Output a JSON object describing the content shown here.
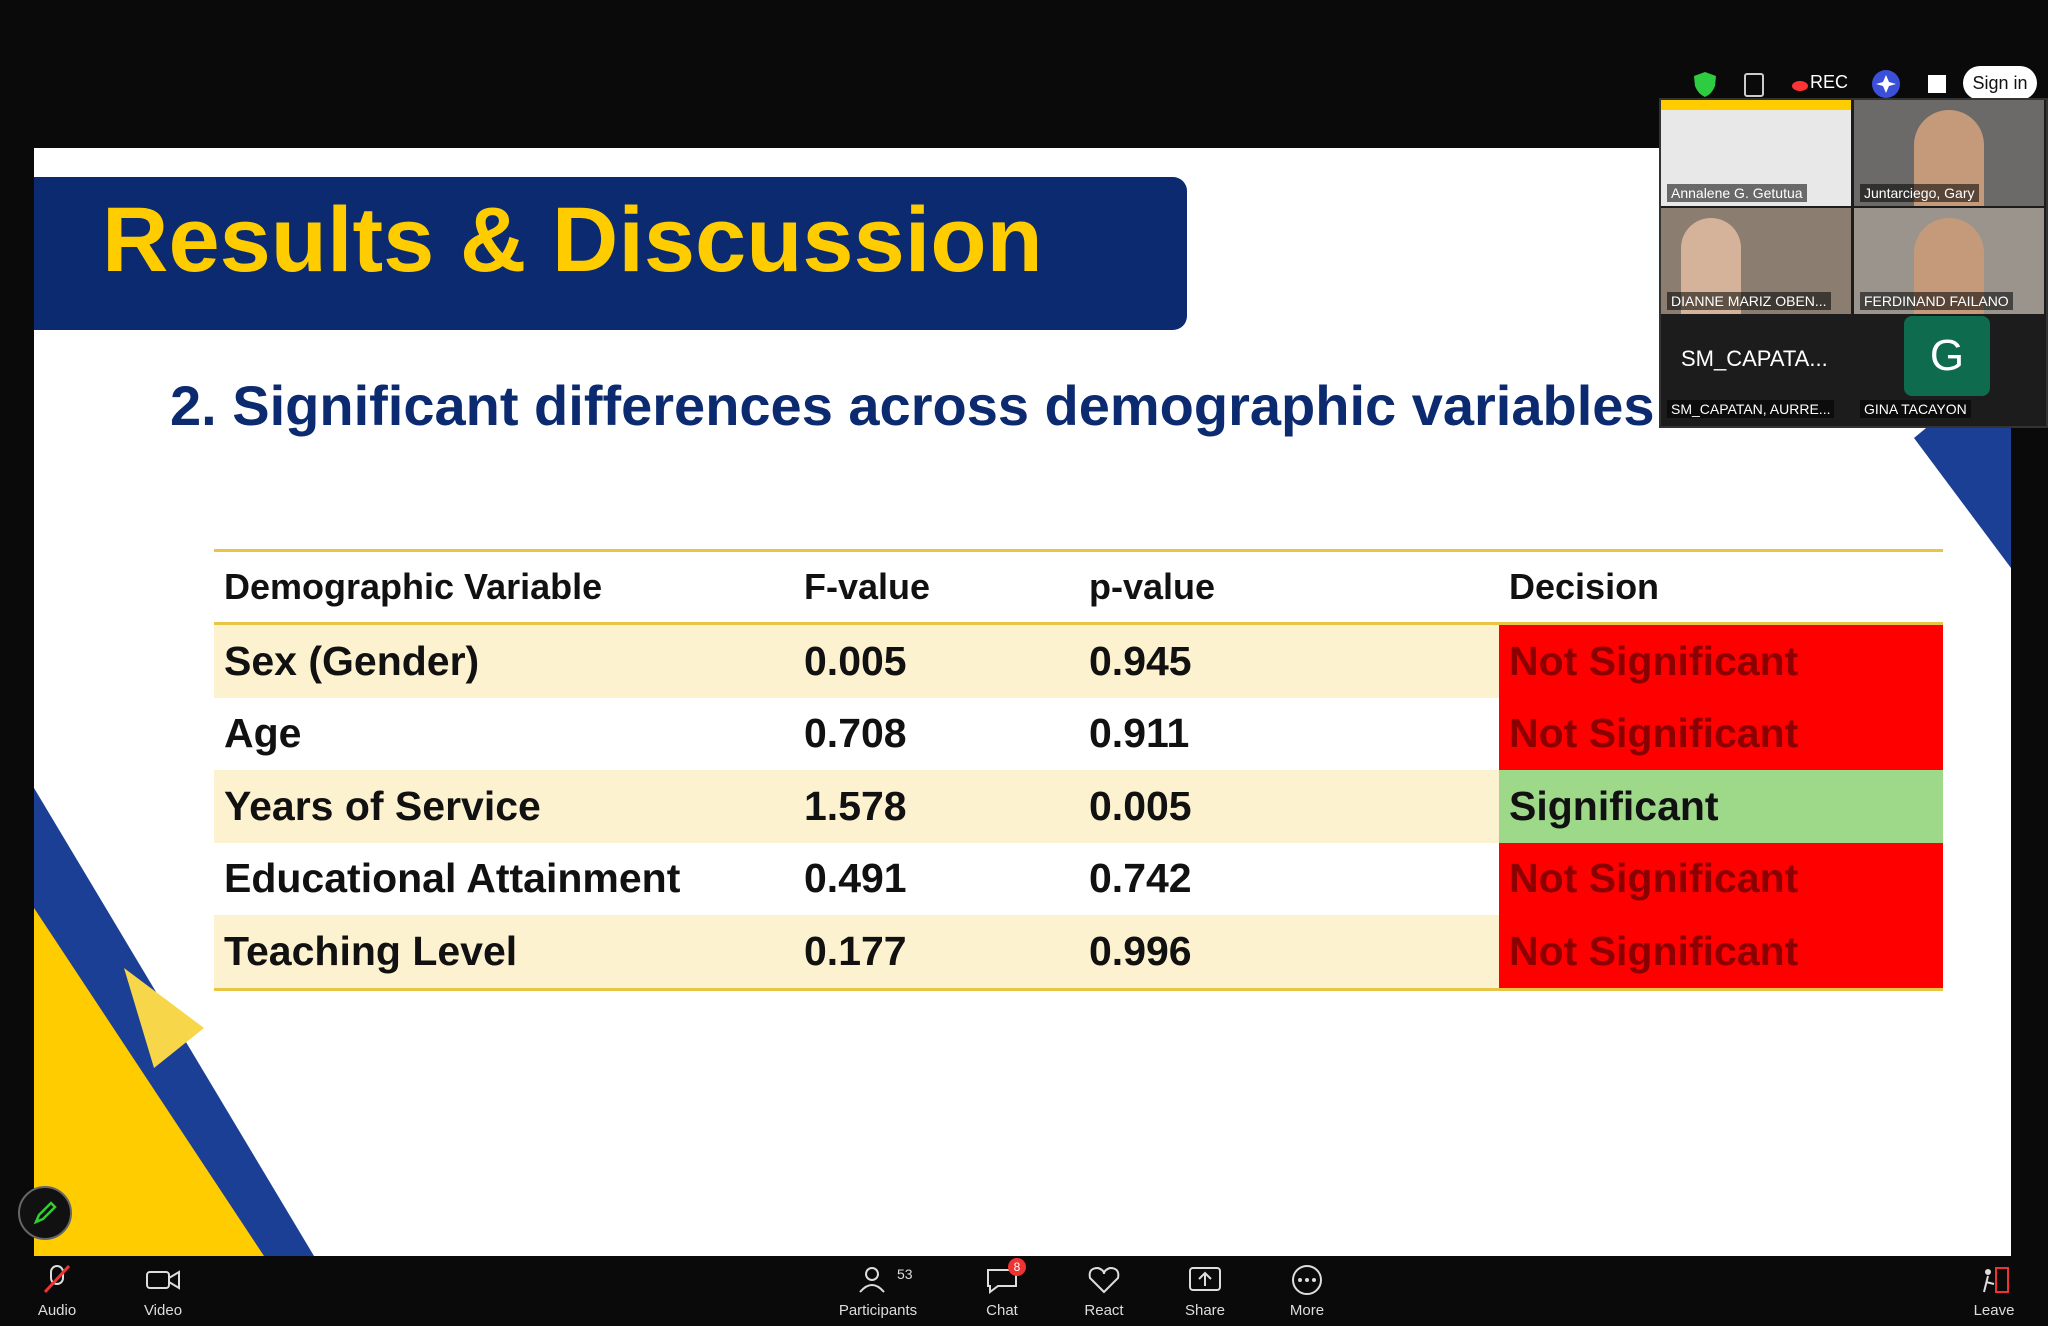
{
  "header": {
    "title": "Results & Discussion",
    "subtitle": "2. Significant differences across demographic variables"
  },
  "table": {
    "columns": [
      "Demographic Variable",
      "F-value",
      "p-value",
      "Decision"
    ],
    "rows": [
      [
        "Sex (Gender)",
        "0.005",
        "0.945",
        "Not Significant"
      ],
      [
        "Age",
        "0.708",
        "0.911",
        "Not Significant"
      ],
      [
        "Years of Service",
        "1.578",
        "0.005",
        "Significant"
      ],
      [
        "Educational Attainment",
        "0.491",
        "0.742",
        "Not Significant"
      ],
      [
        "Teaching Level",
        "0.177",
        "0.996",
        "Not Significant"
      ]
    ]
  },
  "meeting": {
    "top_bar": {
      "rec": "REC",
      "sign_in": "Sign in"
    },
    "tiles": [
      {
        "name": "Annalene G. Getutua"
      },
      {
        "name": "Juntarciego, Gary"
      },
      {
        "name": "DIANNE MARIZ OBEN..."
      },
      {
        "name": "FERDINAND FAILANO"
      },
      {
        "name": "SM_CAPATAN, AURRE...",
        "display": "SM_CAPATA..."
      },
      {
        "name": "GINA TACAYON",
        "avatar": "G"
      }
    ],
    "toolbar": {
      "audio": "Audio",
      "video": "Video",
      "participants": "Participants",
      "participant_count": "53",
      "chat": "Chat",
      "chat_badge": "8",
      "react": "React",
      "share": "Share",
      "more": "More",
      "leave": "Leave"
    }
  }
}
